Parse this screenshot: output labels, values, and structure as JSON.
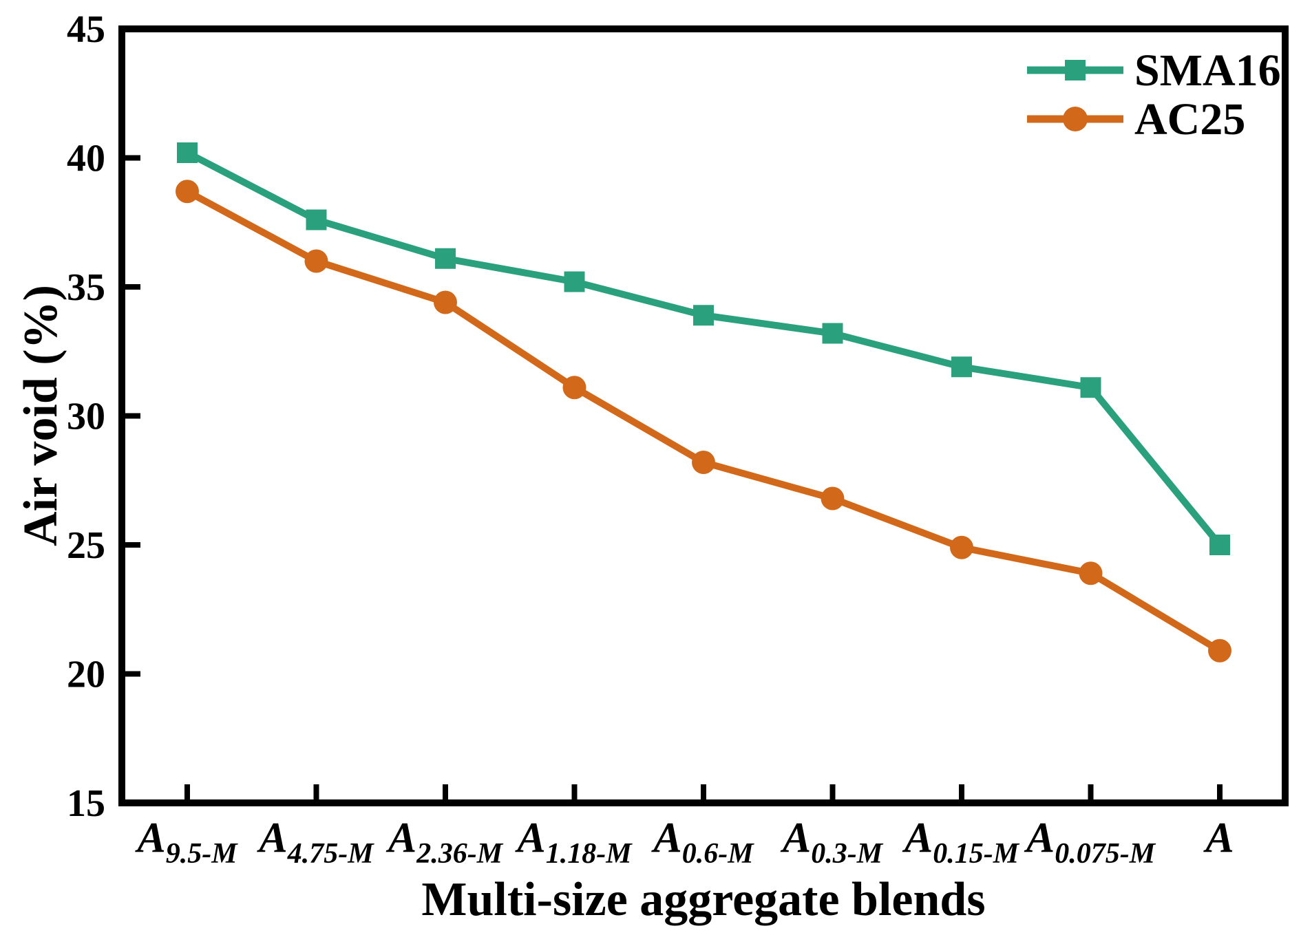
{
  "chart_data": {
    "type": "line",
    "title": "",
    "xlabel": "Multi-size aggregate blends",
    "ylabel": "Air void (%)",
    "ylim": [
      15,
      45
    ],
    "yticks": [
      15,
      20,
      25,
      30,
      35,
      40,
      45
    ],
    "grid": false,
    "legend_position": "top-right",
    "axis_color": "#000000",
    "background_color": "#ffffff",
    "categories": [
      {
        "main": "A",
        "sub": "9.5-M"
      },
      {
        "main": "A",
        "sub": "4.75-M"
      },
      {
        "main": "A",
        "sub": "2.36-M"
      },
      {
        "main": "A",
        "sub": "1.18-M"
      },
      {
        "main": "A",
        "sub": "0.6-M"
      },
      {
        "main": "A",
        "sub": "0.3-M"
      },
      {
        "main": "A",
        "sub": "0.15-M"
      },
      {
        "main": "A",
        "sub": "0.075-M"
      },
      {
        "main": "A",
        "sub": ""
      }
    ],
    "series": [
      {
        "name": "SMA16",
        "marker": "square",
        "color": "#2AA17C",
        "values": [
          40.2,
          37.6,
          36.1,
          35.2,
          33.9,
          33.2,
          31.9,
          31.1,
          25.0
        ]
      },
      {
        "name": "AC25",
        "marker": "circle",
        "color": "#D2691A",
        "values": [
          38.7,
          36.0,
          34.4,
          31.1,
          28.2,
          26.8,
          24.9,
          23.9,
          20.9
        ]
      }
    ]
  }
}
